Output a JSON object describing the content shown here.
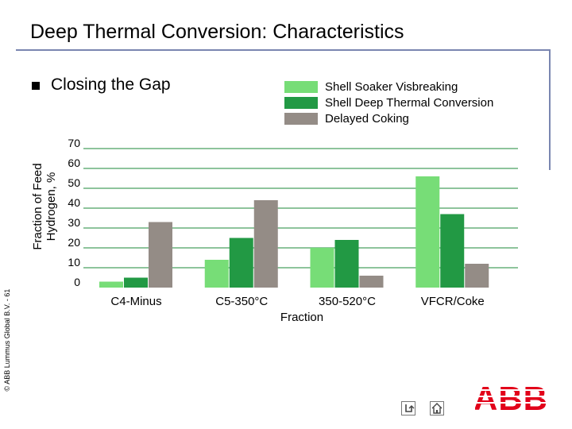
{
  "slide": {
    "title": "Deep Thermal Conversion: Characteristics",
    "subtitle": "Closing the Gap",
    "copyright": "© ABB Lummus Global B.V. - 61",
    "logo_text": "ABB",
    "nav_icons": [
      "return-icon",
      "home-icon"
    ]
  },
  "chart_data": {
    "type": "bar",
    "title": "",
    "xlabel": "Fraction",
    "ylabel": "Fraction of Feed Hydrogen, %",
    "ylim": [
      0,
      70
    ],
    "yticks": [
      0,
      10,
      20,
      30,
      40,
      50,
      60,
      70
    ],
    "grid": true,
    "legend_position": "top-right",
    "categories": [
      "C4-Minus",
      "C5-350°C",
      "350-520°C",
      "VFCR/Coke"
    ],
    "series": [
      {
        "name": "Shell Soaker Visbreaking",
        "color": "#77dd77",
        "values": [
          3,
          14,
          20,
          56
        ]
      },
      {
        "name": "Shell Deep Thermal Conversion",
        "color": "#229944",
        "values": [
          5,
          25,
          24,
          37
        ]
      },
      {
        "name": "Delayed Coking",
        "color": "#948c86",
        "values": [
          33,
          44,
          6,
          12
        ]
      }
    ]
  }
}
